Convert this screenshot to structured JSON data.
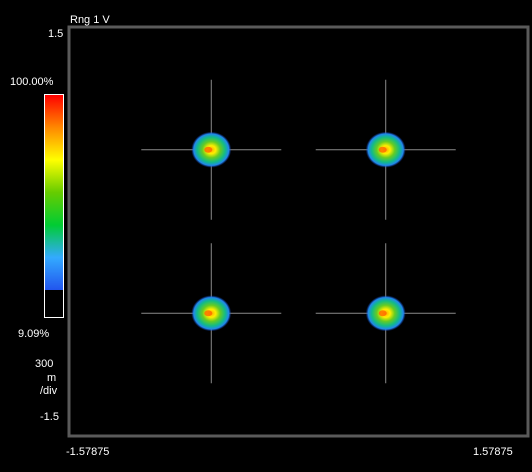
{
  "chart_data": {
    "type": "heatmap",
    "subtype": "constellation-diagram",
    "title": "",
    "range_label": "Rng 1  V",
    "xlim": [
      -1.57875,
      1.57875
    ],
    "ylim": [
      -1.5,
      1.5
    ],
    "x_tick_labels": [
      "-1.57875",
      "1.57875"
    ],
    "y_tick_labels": [
      "1.5",
      "-1.5"
    ],
    "scale_value": "300",
    "scale_unit_line1": "m",
    "scale_unit_line2": "/div",
    "colorbar": {
      "max_label": "100.00%",
      "min_label": "9.09%",
      "colors": [
        "#ff0000",
        "#ff8800",
        "#ffff00",
        "#66cc00",
        "#00cc33",
        "#33aaff",
        "#2255ee"
      ]
    },
    "points": [
      {
        "x": -0.6,
        "y": 0.6
      },
      {
        "x": 0.6,
        "y": 0.6
      },
      {
        "x": -0.6,
        "y": -0.6
      },
      {
        "x": 0.6,
        "y": -0.6
      }
    ],
    "grid": false
  }
}
